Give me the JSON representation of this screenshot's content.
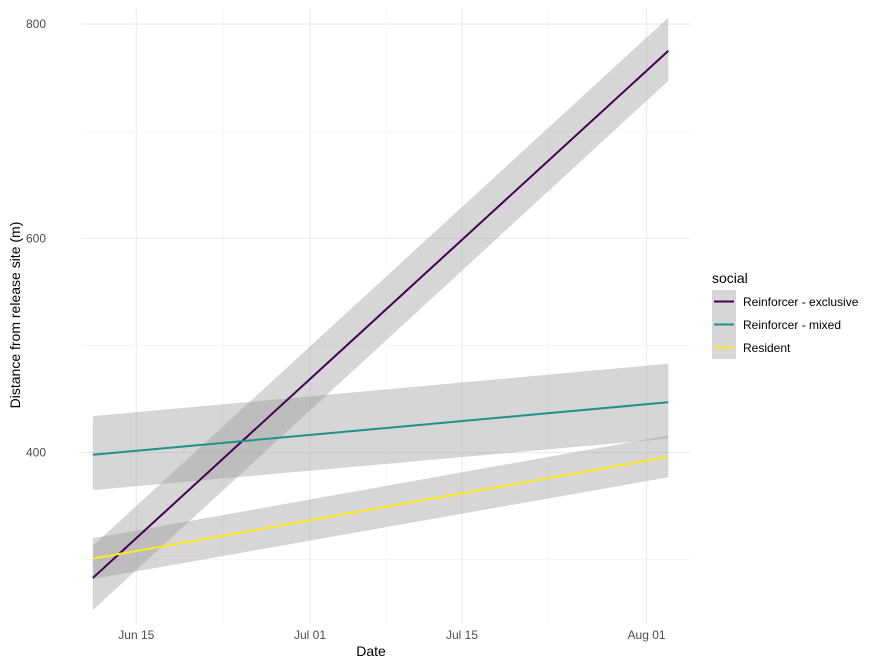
{
  "chart_data": {
    "type": "line",
    "xlabel": "Date",
    "ylabel": "Distance from release site (m)",
    "x_ticks": [
      {
        "date": "2021-06-15",
        "label": "Jun 15"
      },
      {
        "date": "2021-07-01",
        "label": "Jul 01"
      },
      {
        "date": "2021-07-15",
        "label": "Jul 15"
      },
      {
        "date": "2021-08-01",
        "label": "Aug 01"
      }
    ],
    "y_ticks": [
      400,
      600,
      800
    ],
    "xlim": [
      "2021-06-10",
      "2021-08-05"
    ],
    "ylim": [
      240,
      815
    ],
    "grid": true,
    "legend": {
      "title": "social",
      "position": "right"
    },
    "series": [
      {
        "name": "Reinforcer - exclusive",
        "color": "#440154",
        "x": [
          "2021-06-11",
          "2021-08-03"
        ],
        "y": [
          283,
          775
        ],
        "ci_lower": [
          253,
          747
        ],
        "ci_upper": [
          313,
          806
        ]
      },
      {
        "name": "Reinforcer - mixed",
        "color": "#21908C",
        "x": [
          "2021-06-11",
          "2021-08-03"
        ],
        "y": [
          398,
          447
        ],
        "ci_lower": [
          365,
          413
        ],
        "ci_upper": [
          434,
          483
        ]
      },
      {
        "name": "Resident",
        "color": "#FDE725",
        "x": [
          "2021-06-11",
          "2021-08-03"
        ],
        "y": [
          301,
          396
        ],
        "ci_lower": [
          282,
          377
        ],
        "ci_upper": [
          320,
          416
        ]
      }
    ],
    "ribbon_color": "#999999"
  }
}
